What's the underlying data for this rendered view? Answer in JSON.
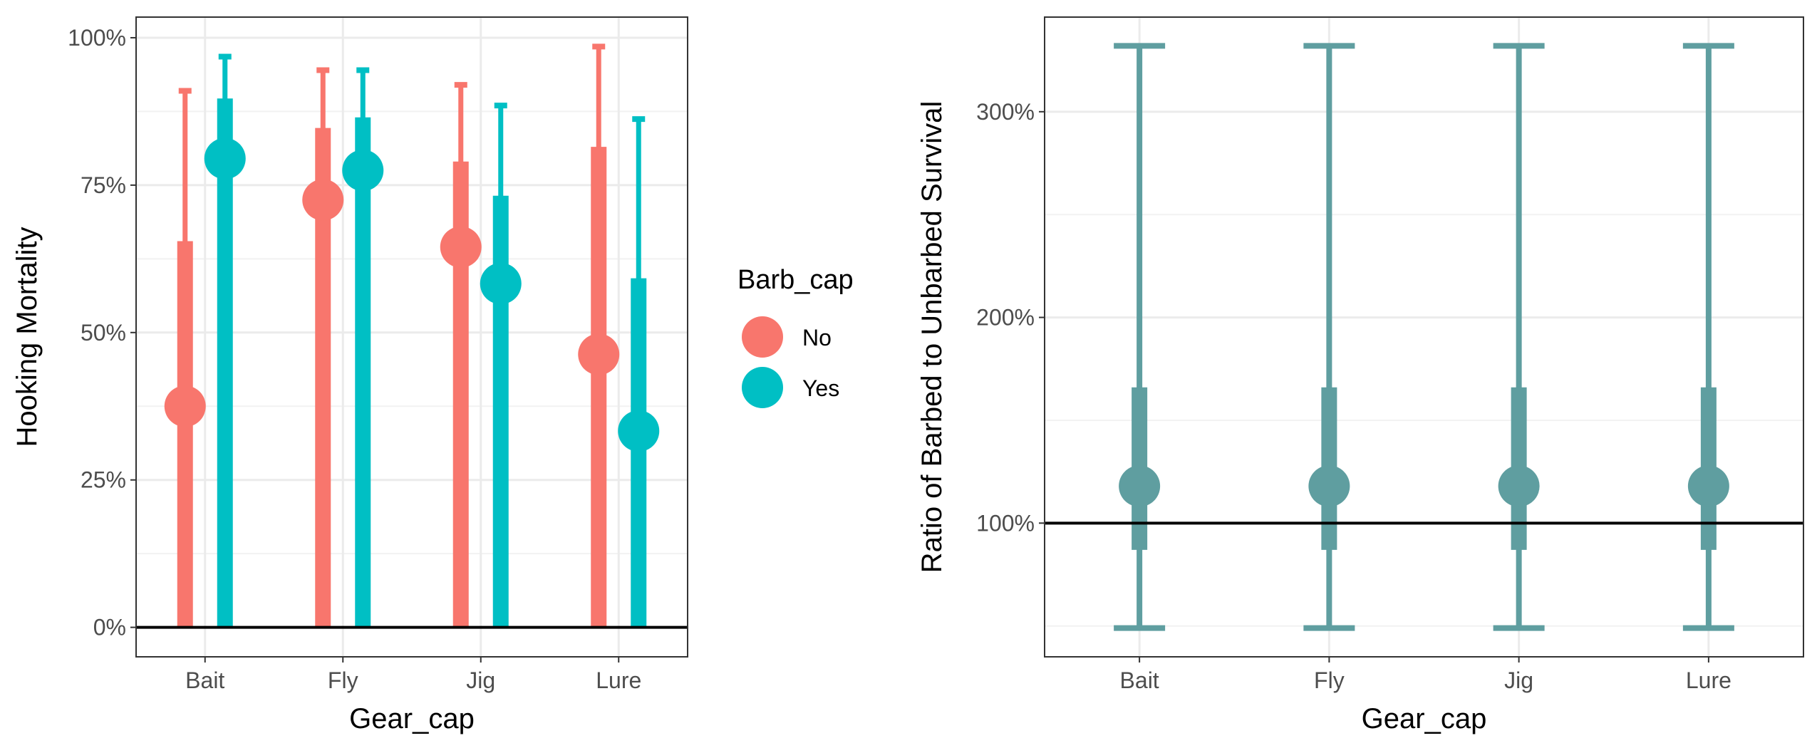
{
  "chart_data": [
    {
      "type": "interval",
      "xlabel": "Gear_cap",
      "ylabel": "Hooking Mortality",
      "categories": [
        "Bait",
        "Fly",
        "Jig",
        "Lure"
      ],
      "ylim": [
        -0.05,
        1.035
      ],
      "yticks": [
        0,
        0.25,
        0.5,
        0.75,
        1.0
      ],
      "ytick_labels": [
        "0%",
        "25%",
        "50%",
        "75%",
        "100%"
      ],
      "reference_line": 0,
      "grid": true,
      "legend": {
        "title": "Barb_cap",
        "placement": "right",
        "entries": [
          {
            "label": "No",
            "color": "#F8766D"
          },
          {
            "label": "Yes",
            "color": "#00BFC4"
          }
        ]
      },
      "series": [
        {
          "name": "No",
          "color": "#F8766D",
          "estimate": [
            0.375,
            0.725,
            0.645,
            0.463
          ],
          "inner_upper": [
            0.655,
            0.847,
            0.79,
            0.815
          ],
          "outer_upper": [
            0.91,
            0.945,
            0.92,
            0.985
          ],
          "lower": [
            0,
            0,
            0,
            0
          ]
        },
        {
          "name": "Yes",
          "color": "#00BFC4",
          "estimate": [
            0.795,
            0.775,
            0.583,
            0.333
          ],
          "inner_upper": [
            0.897,
            0.865,
            0.732,
            0.592
          ],
          "outer_upper": [
            0.968,
            0.945,
            0.885,
            0.862
          ],
          "lower": [
            0,
            0,
            0,
            0
          ]
        }
      ]
    },
    {
      "type": "interval",
      "xlabel": "Gear_cap",
      "ylabel": "Ratio of Barbed to Unbarbed Survival",
      "categories": [
        "Bait",
        "Fly",
        "Jig",
        "Lure"
      ],
      "ylim": [
        0.35,
        3.46
      ],
      "yticks": [
        1,
        2,
        3
      ],
      "ytick_labels": [
        "100%",
        "200%",
        "300%"
      ],
      "reference_line": 1,
      "grid": true,
      "color": "#5F9EA0",
      "estimate": [
        1.18,
        1.18,
        1.18,
        1.18
      ],
      "inner_lower": [
        0.87,
        0.87,
        0.87,
        0.87
      ],
      "inner_upper": [
        1.66,
        1.66,
        1.66,
        1.66
      ],
      "outer_lower": [
        0.49,
        0.49,
        0.49,
        0.49
      ],
      "outer_upper": [
        3.32,
        3.32,
        3.32,
        3.32
      ]
    }
  ]
}
